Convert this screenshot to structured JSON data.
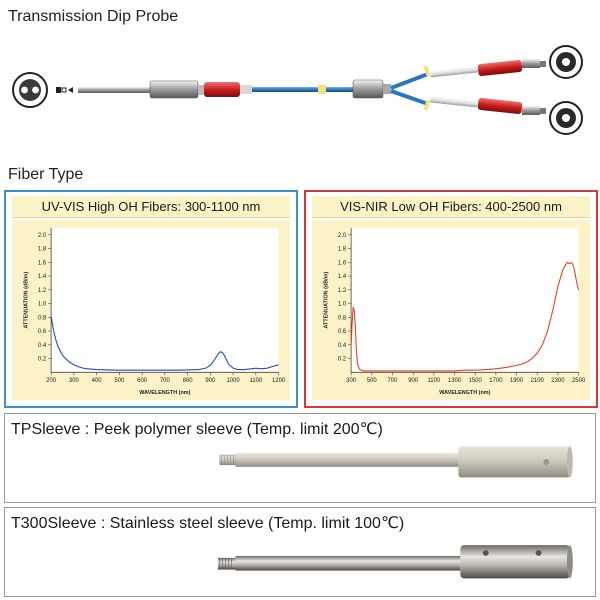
{
  "probe": {
    "heading": "Transmission Dip Probe"
  },
  "fiber": {
    "heading": "Fiber Type"
  },
  "charts": [
    {
      "title": "UV-VIS High OH Fibers: 300-1100 nm",
      "border_color": "#3a8fd0",
      "line_color": "#2f46b0"
    },
    {
      "title": "VIS-NIR Low OH Fibers: 400-2500 nm",
      "border_color": "#d23a3a",
      "line_color": "#e0432a"
    }
  ],
  "chart_data": [
    {
      "type": "line",
      "title": "UV-VIS High OH Fibers: 300-1100 nm",
      "xlabel": "WAVELENGTH (nm)",
      "ylabel": "ATTENUATION (dB/m)",
      "xlim": [
        200,
        1200
      ],
      "ylim": [
        0,
        2.1
      ],
      "xticks": [
        200,
        300,
        400,
        500,
        600,
        700,
        800,
        900,
        1000,
        1100,
        1200
      ],
      "yticks": [
        0.2,
        0.4,
        0.6,
        0.8,
        1.0,
        1.2,
        1.4,
        1.6,
        1.8,
        2.0
      ],
      "grid": false,
      "series": [
        {
          "x": [
            200,
            205,
            210,
            220,
            230,
            240,
            250,
            260,
            270,
            280,
            300,
            320,
            340,
            360,
            400,
            450,
            500,
            550,
            600,
            650,
            700,
            750,
            800,
            850,
            880,
            900,
            920,
            935,
            945,
            955,
            965,
            980,
            1000,
            1020,
            1050,
            1080,
            1100,
            1120,
            1150,
            1170,
            1190,
            1200
          ],
          "y": [
            0.82,
            0.72,
            0.62,
            0.48,
            0.38,
            0.31,
            0.25,
            0.21,
            0.18,
            0.15,
            0.11,
            0.08,
            0.06,
            0.05,
            0.04,
            0.035,
            0.03,
            0.03,
            0.03,
            0.03,
            0.03,
            0.03,
            0.035,
            0.04,
            0.06,
            0.1,
            0.19,
            0.27,
            0.3,
            0.28,
            0.22,
            0.12,
            0.06,
            0.04,
            0.04,
            0.05,
            0.06,
            0.05,
            0.06,
            0.08,
            0.1,
            0.11
          ]
        }
      ]
    },
    {
      "type": "line",
      "title": "VIS-NIR Low OH Fibers: 400-2500 nm",
      "xlabel": "WAVELENGTH (nm)",
      "ylabel": "ATTENUATION (dB/m)",
      "xlim": [
        300,
        2500
      ],
      "ylim": [
        0,
        2.1
      ],
      "xticks": [
        300,
        500,
        700,
        900,
        1100,
        1300,
        1500,
        1700,
        1900,
        2100,
        2300,
        2500
      ],
      "yticks": [
        0.2,
        0.4,
        0.6,
        0.8,
        1.0,
        1.2,
        1.4,
        1.6,
        1.8,
        2.0
      ],
      "grid": false,
      "series": [
        {
          "x": [
            300,
            310,
            320,
            330,
            340,
            350,
            360,
            370,
            385,
            400,
            420,
            450,
            500,
            600,
            700,
            800,
            900,
            1000,
            1100,
            1200,
            1300,
            1400,
            1500,
            1600,
            1700,
            1800,
            1900,
            1950,
            2000,
            2050,
            2100,
            2150,
            2200,
            2250,
            2300,
            2330,
            2350,
            2370,
            2390,
            2410,
            2430,
            2450,
            2470,
            2490,
            2500
          ],
          "y": [
            0.4,
            0.7,
            0.95,
            0.9,
            0.7,
            0.35,
            0.15,
            0.08,
            0.04,
            0.03,
            0.02,
            0.02,
            0.02,
            0.02,
            0.02,
            0.02,
            0.02,
            0.02,
            0.02,
            0.02,
            0.02,
            0.03,
            0.03,
            0.04,
            0.05,
            0.07,
            0.1,
            0.12,
            0.15,
            0.2,
            0.28,
            0.4,
            0.6,
            0.9,
            1.25,
            1.4,
            1.5,
            1.55,
            1.6,
            1.58,
            1.6,
            1.55,
            1.4,
            1.25,
            1.2
          ]
        }
      ]
    }
  ],
  "sleeves": [
    {
      "title": "TPSleeve : Peek polymer sleeve (Temp. limit 200℃)"
    },
    {
      "title": "T300Sleeve : Stainless steel sleeve (Temp. limit 100℃)"
    }
  ]
}
